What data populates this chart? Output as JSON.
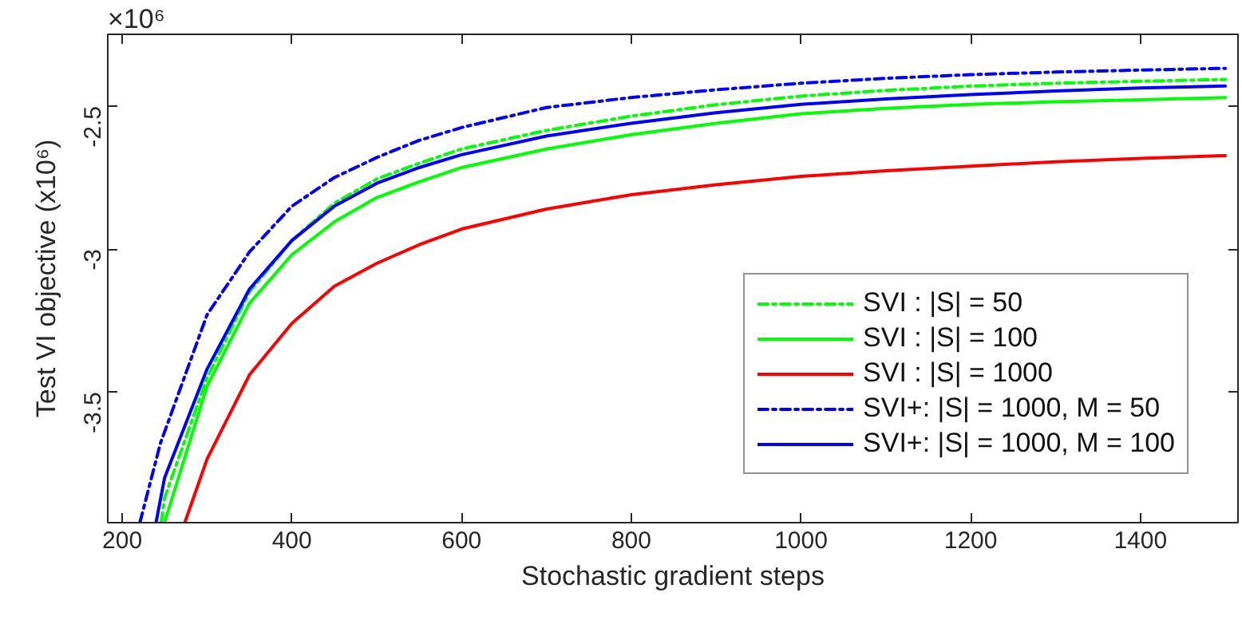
{
  "chart_data": {
    "type": "line",
    "xlabel": "Stochastic gradient steps",
    "ylabel": "Test VI objective (x10⁶)",
    "annotations": [
      "×10⁶"
    ],
    "xlim": [
      183,
      1515
    ],
    "ylim": [
      -3.957,
      -2.249
    ],
    "xticks": [
      200,
      400,
      600,
      800,
      1000,
      1200,
      1400
    ],
    "yticks": [
      -3.5,
      -3,
      -2.5
    ],
    "grid": false,
    "legend": "bottom right",
    "marker": "none",
    "series": [
      {
        "name": "SVI : |S| = 50",
        "color": "#00ff00",
        "line_style": "dashdot",
        "x": [
          246,
          250,
          300,
          350,
          400,
          450,
          500,
          550,
          600,
          700,
          800,
          900,
          1000,
          1100,
          1200,
          1300,
          1400,
          1500
        ],
        "values": [
          -3.955,
          -3.87,
          -3.45,
          -3.15,
          -2.97,
          -2.84,
          -2.755,
          -2.7,
          -2.65,
          -2.585,
          -2.535,
          -2.495,
          -2.465,
          -2.445,
          -2.43,
          -2.42,
          -2.413,
          -2.407
        ]
      },
      {
        "name": "SVI : |S| = 100",
        "color": "#00ff00",
        "line_style": "solid",
        "x": [
          250,
          300,
          350,
          400,
          450,
          500,
          550,
          600,
          700,
          800,
          900,
          1000,
          1100,
          1200,
          1300,
          1400,
          1500
        ],
        "values": [
          -3.955,
          -3.48,
          -3.19,
          -3.02,
          -2.905,
          -2.82,
          -2.765,
          -2.715,
          -2.65,
          -2.6,
          -2.56,
          -2.527,
          -2.508,
          -2.494,
          -2.485,
          -2.478,
          -2.47
        ]
      },
      {
        "name": "SVI : |S| = 1000",
        "color": "#ff0000",
        "line_style": "solid",
        "x": [
          274,
          300,
          350,
          400,
          450,
          500,
          550,
          600,
          700,
          800,
          900,
          1000,
          1100,
          1200,
          1300,
          1400,
          1500
        ],
        "values": [
          -3.955,
          -3.735,
          -3.44,
          -3.26,
          -3.13,
          -3.05,
          -2.985,
          -2.93,
          -2.86,
          -2.81,
          -2.775,
          -2.746,
          -2.726,
          -2.71,
          -2.695,
          -2.683,
          -2.673
        ]
      },
      {
        "name": "SVI+: |S| = 1000, M = 50",
        "color": "#0000ff",
        "line_style": "dashdot",
        "x": [
          221,
          245,
          300,
          350,
          400,
          450,
          500,
          550,
          600,
          700,
          800,
          900,
          1000,
          1100,
          1200,
          1300,
          1400,
          1500
        ],
        "values": [
          -3.955,
          -3.68,
          -3.23,
          -3.01,
          -2.85,
          -2.75,
          -2.68,
          -2.62,
          -2.575,
          -2.505,
          -2.47,
          -2.443,
          -2.42,
          -2.403,
          -2.39,
          -2.381,
          -2.374,
          -2.368
        ]
      },
      {
        "name": "SVI+: |S| = 1000, M = 100",
        "color": "#0000ff",
        "line_style": "solid",
        "x": [
          240,
          250,
          300,
          350,
          400,
          450,
          500,
          550,
          600,
          700,
          800,
          900,
          1000,
          1100,
          1200,
          1300,
          1400,
          1500
        ],
        "values": [
          -3.955,
          -3.8,
          -3.42,
          -3.14,
          -2.97,
          -2.85,
          -2.77,
          -2.715,
          -2.67,
          -2.605,
          -2.56,
          -2.523,
          -2.494,
          -2.475,
          -2.46,
          -2.447,
          -2.437,
          -2.43
        ]
      }
    ]
  }
}
